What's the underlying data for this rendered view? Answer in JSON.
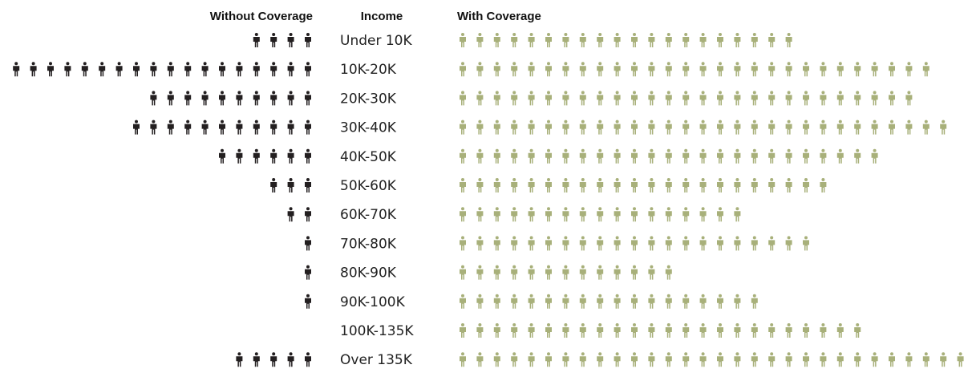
{
  "chart_data": {
    "type": "pictogram",
    "headers": {
      "without": "Without Coverage",
      "income": "Income",
      "with": "With Coverage"
    },
    "categories": [
      "Under 10K",
      "10K-20K",
      "20K-30K",
      "30K-40K",
      "40K-50K",
      "50K-60K",
      "60K-70K",
      "70K-80K",
      "80K-90K",
      "90K-100K",
      "100K-135K",
      "Over 135K"
    ],
    "series": [
      {
        "name": "Without Coverage",
        "values": [
          4,
          18,
          10,
          11,
          6,
          3,
          2,
          1,
          1,
          1,
          0,
          5
        ]
      },
      {
        "name": "With Coverage",
        "values": [
          20,
          28,
          27,
          29,
          25,
          22,
          17,
          21,
          13,
          18,
          24,
          30
        ]
      }
    ],
    "colors": {
      "without": "#231f20",
      "with": "#a8b07a"
    },
    "icon": "person-icon"
  }
}
